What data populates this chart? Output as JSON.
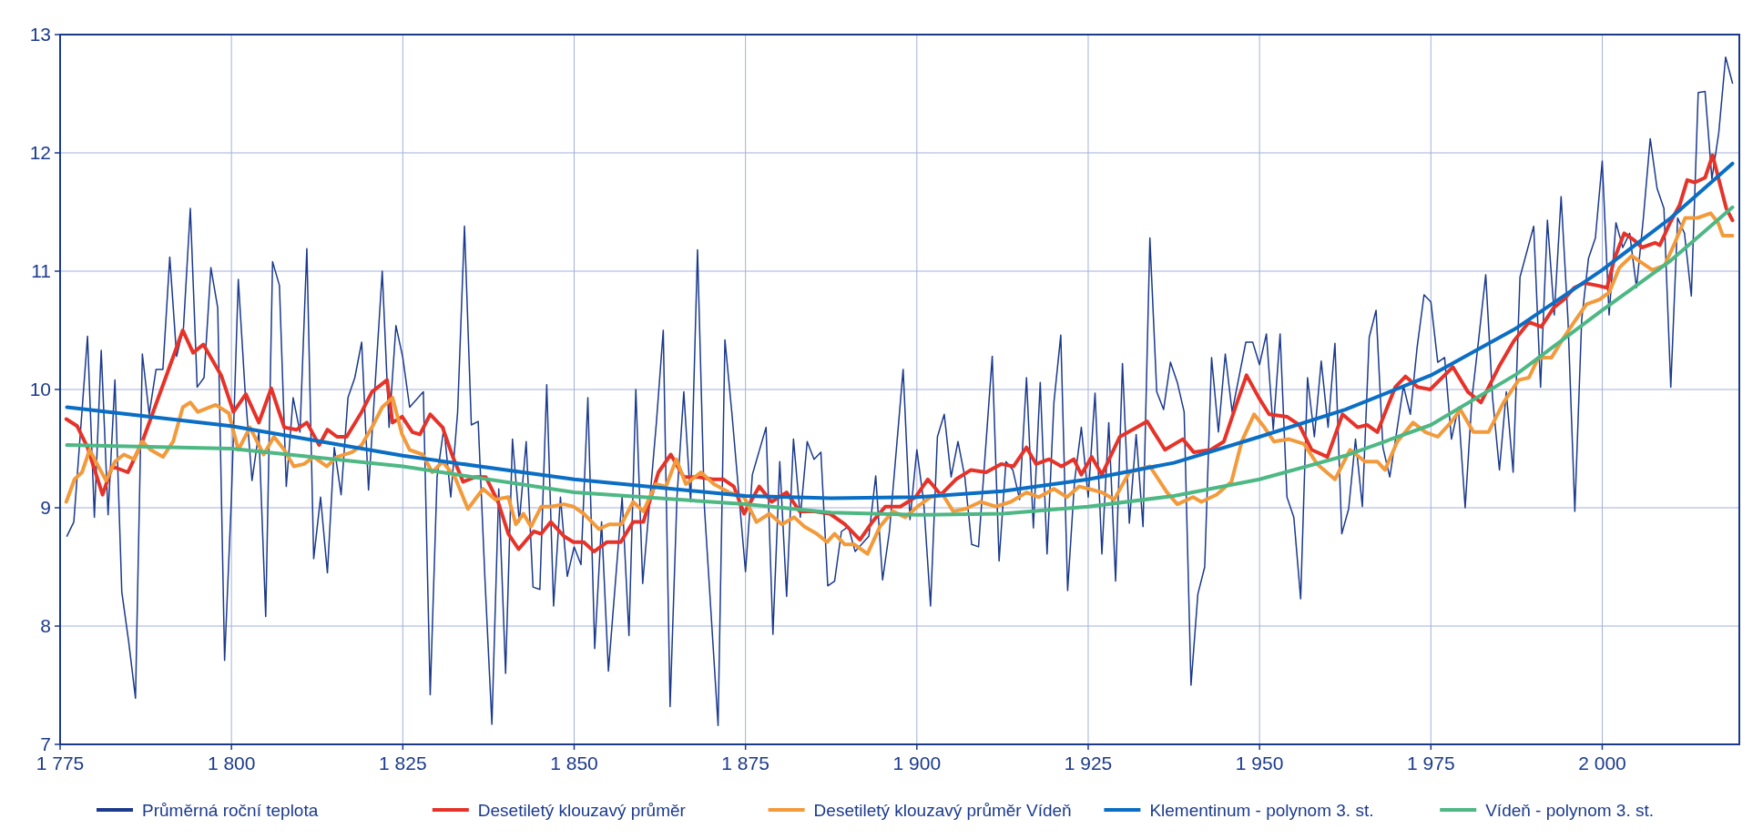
{
  "chart_data": {
    "type": "line",
    "xlim": [
      1775,
      2020
    ],
    "xticks": [
      {
        "value": 1775,
        "label": "1 775"
      },
      {
        "value": 1800,
        "label": "1 800"
      },
      {
        "value": 1825,
        "label": "1 825"
      },
      {
        "value": 1850,
        "label": "1 850"
      },
      {
        "value": 1875,
        "label": "1 875"
      },
      {
        "value": 1900,
        "label": "1 900"
      },
      {
        "value": 1925,
        "label": "1 925"
      },
      {
        "value": 1950,
        "label": "1 950"
      },
      {
        "value": 1975,
        "label": "1 975"
      },
      {
        "value": 2000,
        "label": "2 000"
      }
    ],
    "ylim": [
      7,
      13
    ],
    "yticks": [
      7,
      8,
      9,
      10,
      11,
      12,
      13
    ],
    "grid": true,
    "legend": "bottom",
    "line_style": "solid",
    "marker": "none",
    "series": [
      {
        "name": "Průměrná roční teplota",
        "color": "#1b3a8c",
        "x": [
          1776,
          1777,
          1779,
          1780,
          1781,
          1782,
          1783,
          1784,
          1785,
          1786,
          1787,
          1788,
          1789,
          1790,
          1791,
          1792,
          1793,
          1794,
          1795,
          1796,
          1797,
          1798,
          1799,
          1800,
          1801,
          1802,
          1803,
          1804,
          1805,
          1806,
          1807,
          1808,
          1809,
          1810,
          1811,
          1812,
          1813,
          1814,
          1815,
          1816,
          1817,
          1818,
          1819,
          1820,
          1822,
          1823,
          1824,
          1825,
          1826,
          1828,
          1829,
          1830,
          1831,
          1832,
          1833,
          1834,
          1835,
          1836,
          1837,
          1838,
          1839,
          1840,
          1841,
          1842,
          1843,
          1844,
          1845,
          1846,
          1847,
          1848,
          1849,
          1850,
          1851,
          1852,
          1853,
          1854,
          1855,
          1857,
          1858,
          1859,
          1860,
          1862,
          1863,
          1864,
          1865,
          1866,
          1867,
          1868,
          1869,
          1871,
          1872,
          1873,
          1875,
          1876,
          1878,
          1879,
          1880,
          1881,
          1882,
          1883,
          1884,
          1885,
          1886,
          1887,
          1888,
          1889,
          1890,
          1891,
          1893,
          1894,
          1895,
          1896,
          1898,
          1899,
          1900,
          1901,
          1902,
          1903,
          1904,
          1905,
          1906,
          1907,
          1908,
          1909,
          1911,
          1912,
          1913,
          1914,
          1915,
          1916,
          1917,
          1918,
          1919,
          1920,
          1921,
          1922,
          1923,
          1924,
          1925,
          1926,
          1927,
          1928,
          1929,
          1930,
          1931,
          1932,
          1933,
          1934,
          1935,
          1936,
          1937,
          1938,
          1939,
          1940,
          1941,
          1942,
          1943,
          1944,
          1945,
          1946,
          1948,
          1949,
          1950,
          1951,
          1952,
          1953,
          1954,
          1955,
          1956,
          1957,
          1958,
          1959,
          1960,
          1961,
          1962,
          1963,
          1964,
          1965,
          1966,
          1967,
          1968,
          1969,
          1970,
          1971,
          1972,
          1973,
          1974,
          1975,
          1976,
          1977,
          1978,
          1979,
          1980,
          1981,
          1982,
          1983,
          1984,
          1985,
          1986,
          1987,
          1988,
          1990,
          1991,
          1992,
          1993,
          1994,
          1995,
          1996,
          1997,
          1998,
          1999,
          2000,
          2001,
          2002,
          2003,
          2004,
          2005,
          2006,
          2007,
          2008,
          2009,
          2010,
          2011,
          2012,
          2013,
          2014,
          2015,
          2016,
          2017,
          2018,
          2019
        ],
        "values": [
          8.76,
          8.88,
          10.45,
          8.92,
          10.33,
          8.94,
          10.08,
          8.29,
          7.87,
          7.39,
          10.3,
          9.79,
          10.17,
          10.17,
          11.12,
          10.28,
          10.52,
          11.53,
          10.02,
          10.1,
          11.03,
          10.69,
          7.71,
          9.09,
          10.93,
          9.98,
          9.23,
          9.64,
          8.08,
          11.08,
          10.88,
          9.18,
          9.93,
          9.64,
          11.19,
          8.57,
          9.09,
          8.45,
          9.51,
          9.11,
          9.93,
          10.1,
          10.4,
          9.15,
          11.0,
          9.68,
          10.54,
          10.27,
          9.85,
          9.98,
          7.42,
          9.26,
          9.68,
          9.09,
          9.81,
          11.38,
          9.7,
          9.73,
          8.38,
          7.17,
          9.16,
          7.6,
          9.58,
          8.88,
          9.56,
          8.33,
          8.31,
          10.04,
          8.17,
          9.09,
          8.42,
          8.67,
          8.52,
          9.93,
          7.81,
          8.88,
          7.62,
          9.09,
          7.92,
          10.0,
          8.36,
          9.72,
          10.5,
          7.32,
          9.09,
          9.98,
          9.05,
          11.18,
          9.01,
          7.16,
          10.42,
          9.81,
          8.46,
          9.28,
          9.68,
          7.93,
          9.39,
          8.25,
          9.58,
          8.92,
          9.56,
          9.41,
          9.47,
          8.34,
          8.38,
          8.8,
          8.84,
          8.63,
          8.76,
          9.27,
          8.39,
          8.8,
          10.17,
          8.9,
          9.49,
          9.05,
          8.17,
          9.6,
          9.79,
          9.26,
          9.56,
          9.26,
          8.69,
          8.67,
          10.28,
          8.55,
          9.39,
          9.32,
          9.07,
          10.1,
          8.83,
          10.06,
          8.61,
          9.89,
          10.46,
          8.3,
          9.22,
          9.68,
          9.09,
          9.97,
          8.61,
          9.72,
          8.38,
          10.22,
          8.87,
          9.62,
          8.84,
          11.28,
          9.98,
          9.83,
          10.23,
          10.06,
          9.81,
          7.5,
          8.27,
          8.5,
          10.27,
          9.64,
          10.3,
          9.81,
          10.4,
          10.4,
          10.21,
          10.47,
          9.66,
          10.47,
          9.09,
          8.92,
          8.23,
          10.1,
          9.6,
          10.24,
          9.68,
          10.39,
          8.78,
          8.99,
          9.58,
          9.01,
          10.44,
          10.67,
          9.51,
          9.26,
          9.64,
          10.03,
          9.79,
          10.36,
          10.8,
          10.74,
          10.23,
          10.27,
          9.58,
          9.85,
          9.0,
          9.93,
          10.44,
          10.97,
          9.93,
          9.32,
          9.98,
          9.3,
          10.95,
          11.38,
          10.02,
          11.43,
          10.63,
          11.63,
          10.59,
          8.97,
          10.59,
          11.11,
          11.28,
          11.93,
          10.63,
          11.41,
          11.2,
          11.32,
          10.86,
          11.45,
          12.12,
          11.7,
          11.53,
          10.02,
          11.45,
          11.32,
          10.79,
          12.51,
          12.52,
          11.78,
          12.17,
          12.81,
          12.59
        ]
      },
      {
        "name": "Desetiletý klouzavý průměr",
        "color": "#e63329",
        "x": [
          1775.9,
          1777.5,
          1779,
          1781.2,
          1782.6,
          1784.9,
          1787,
          1790.4,
          1792.9,
          1794.4,
          1795.9,
          1798.5,
          1800.3,
          1802.1,
          1804,
          1805.8,
          1807.7,
          1809.5,
          1811,
          1812.8,
          1814,
          1815.4,
          1816.8,
          1819,
          1820.5,
          1822.7,
          1823.5,
          1824.9,
          1826.4,
          1827.5,
          1829,
          1830.8,
          1832.3,
          1833.8,
          1835.6,
          1837.1,
          1838.9,
          1840.4,
          1841.9,
          1844.1,
          1845.2,
          1846.6,
          1848.5,
          1849.9,
          1851.4,
          1852.9,
          1854.8,
          1856.8,
          1858.6,
          1860.1,
          1862.3,
          1864.1,
          1866,
          1868.2,
          1870.2,
          1871.8,
          1873.3,
          1874.8,
          1877,
          1878.8,
          1881,
          1882.9,
          1885.1,
          1887.3,
          1889.5,
          1891.7,
          1893.5,
          1895.4,
          1897.6,
          1899.8,
          1901.6,
          1903.5,
          1905.7,
          1907.9,
          1910.1,
          1912.3,
          1914.1,
          1916,
          1917.4,
          1919.3,
          1921.1,
          1922.9,
          1924,
          1925.5,
          1927,
          1929.6,
          1932.1,
          1933.6,
          1936.2,
          1938.8,
          1940.4,
          1942.9,
          1944.8,
          1946.6,
          1948.1,
          1949.9,
          1951.4,
          1954,
          1955.8,
          1957.6,
          1959.9,
          1962.1,
          1964.3,
          1965.7,
          1967.2,
          1969.8,
          1971.3,
          1973.1,
          1974.9,
          1978.2,
          1980.4,
          1982.3,
          1984.9,
          1987.1,
          1989.3,
          1991.1,
          1992.9,
          1994.4,
          1995.9,
          1997.4,
          1999.2,
          2000.7,
          2001.8,
          2003.2,
          2004.7,
          2005.8,
          2007.7,
          2008.4,
          2009.9,
          2011.3,
          2012.4,
          2013.5,
          2015,
          2016.1,
          2017.2,
          2018.1,
          2019
        ],
        "values": [
          9.75,
          9.69,
          9.51,
          9.11,
          9.35,
          9.3,
          9.56,
          10.1,
          10.5,
          10.31,
          10.38,
          10.12,
          9.81,
          9.96,
          9.72,
          10.01,
          9.68,
          9.66,
          9.72,
          9.53,
          9.66,
          9.6,
          9.6,
          9.81,
          9.98,
          10.08,
          9.72,
          9.77,
          9.64,
          9.62,
          9.79,
          9.68,
          9.43,
          9.22,
          9.26,
          9.26,
          9.05,
          8.78,
          8.65,
          8.8,
          8.78,
          8.88,
          8.76,
          8.71,
          8.71,
          8.63,
          8.71,
          8.71,
          8.88,
          8.88,
          9.3,
          9.45,
          9.26,
          9.26,
          9.24,
          9.24,
          9.18,
          8.95,
          9.18,
          9.05,
          9.13,
          8.97,
          8.97,
          8.95,
          8.86,
          8.73,
          8.88,
          9.01,
          9.01,
          9.09,
          9.24,
          9.11,
          9.24,
          9.32,
          9.3,
          9.37,
          9.35,
          9.51,
          9.37,
          9.41,
          9.35,
          9.41,
          9.28,
          9.43,
          9.28,
          9.6,
          9.68,
          9.73,
          9.49,
          9.58,
          9.47,
          9.49,
          9.56,
          9.87,
          10.12,
          9.93,
          9.79,
          9.77,
          9.7,
          9.49,
          9.43,
          9.79,
          9.68,
          9.7,
          9.64,
          10.02,
          10.11,
          10.02,
          10.0,
          10.19,
          9.98,
          9.89,
          10.19,
          10.41,
          10.57,
          10.53,
          10.69,
          10.76,
          10.86,
          10.9,
          10.88,
          10.86,
          11.11,
          11.32,
          11.26,
          11.2,
          11.24,
          11.22,
          11.41,
          11.56,
          11.77,
          11.75,
          11.79,
          11.98,
          11.73,
          11.53,
          11.43
        ]
      },
      {
        "name": "Desetiletý klouzavý průměr Vídeň",
        "color": "#f39a3b",
        "x": [
          1775.9,
          1777.1,
          1778.2,
          1779.3,
          1780.4,
          1781.7,
          1783,
          1784.3,
          1785.8,
          1787,
          1788.2,
          1790,
          1791.5,
          1792.9,
          1794,
          1795.1,
          1797.7,
          1799.6,
          1801,
          1802.7,
          1804.7,
          1806.2,
          1807.7,
          1809.1,
          1810.6,
          1812,
          1813.9,
          1815.4,
          1817.6,
          1819,
          1820.5,
          1822,
          1823.5,
          1824.9,
          1826,
          1827.9,
          1829.3,
          1830.8,
          1832.6,
          1834.5,
          1836.7,
          1838.5,
          1840.4,
          1841.5,
          1842.6,
          1843.7,
          1845.2,
          1846.6,
          1848.5,
          1849.9,
          1851.4,
          1853.6,
          1855.1,
          1856.9,
          1858.6,
          1860.1,
          1861.9,
          1863.4,
          1864.9,
          1866.3,
          1868.5,
          1870.4,
          1872.6,
          1874.8,
          1876.6,
          1878.5,
          1880.3,
          1882.1,
          1883.6,
          1885.4,
          1886.9,
          1888,
          1889.5,
          1890.9,
          1892.8,
          1894.6,
          1896.5,
          1898.3,
          1900.1,
          1902,
          1903.8,
          1905.3,
          1907.1,
          1909.3,
          1911.5,
          1913.7,
          1916,
          1917.8,
          1920,
          1921.9,
          1923.7,
          1925.1,
          1927,
          1928.8,
          1931,
          1934,
          1936.5,
          1938,
          1940.3,
          1941.5,
          1943.7,
          1945.9,
          1947.4,
          1949.2,
          1950.7,
          1952.1,
          1954.3,
          1956.5,
          1958.4,
          1961,
          1963.2,
          1965.4,
          1967.2,
          1968.3,
          1970.1,
          1972.4,
          1974.2,
          1976,
          1977.9,
          1979.3,
          1981.2,
          1983.4,
          1985.6,
          1987.8,
          1989.3,
          1990.7,
          1992.6,
          1994.4,
          1995.9,
          1997.7,
          1999.6,
          2001,
          2002.5,
          2004.3,
          2005.8,
          2007.3,
          2009.1,
          2010.6,
          2012.1,
          2013.9,
          2015.8,
          2016.9,
          2017.6,
          2019
        ],
        "values": [
          9.05,
          9.24,
          9.3,
          9.49,
          9.37,
          9.23,
          9.39,
          9.45,
          9.41,
          9.56,
          9.49,
          9.43,
          9.56,
          9.85,
          9.89,
          9.81,
          9.87,
          9.8,
          9.49,
          9.68,
          9.45,
          9.6,
          9.49,
          9.35,
          9.37,
          9.43,
          9.35,
          9.43,
          9.47,
          9.53,
          9.68,
          9.85,
          9.93,
          9.62,
          9.49,
          9.45,
          9.3,
          9.39,
          9.26,
          8.99,
          9.16,
          9.07,
          9.09,
          8.86,
          8.95,
          8.84,
          9.01,
          9.01,
          9.03,
          9.01,
          8.95,
          8.82,
          8.86,
          8.86,
          9.05,
          8.97,
          9.2,
          9.18,
          9.41,
          9.2,
          9.3,
          9.2,
          9.13,
          9.09,
          8.88,
          8.95,
          8.86,
          8.92,
          8.84,
          8.78,
          8.71,
          8.78,
          8.69,
          8.69,
          8.61,
          8.84,
          8.97,
          8.92,
          9.01,
          9.09,
          9.11,
          8.97,
          8.99,
          9.05,
          9.01,
          9.05,
          9.13,
          9.09,
          9.16,
          9.09,
          9.18,
          9.16,
          9.13,
          9.07,
          9.3,
          9.35,
          9.13,
          9.03,
          9.09,
          9.05,
          9.11,
          9.22,
          9.56,
          9.79,
          9.68,
          9.56,
          9.58,
          9.54,
          9.37,
          9.24,
          9.49,
          9.39,
          9.39,
          9.32,
          9.56,
          9.72,
          9.64,
          9.6,
          9.72,
          9.83,
          9.64,
          9.64,
          9.89,
          10.08,
          10.1,
          10.27,
          10.27,
          10.44,
          10.57,
          10.72,
          10.76,
          10.82,
          11.03,
          11.13,
          11.07,
          11.01,
          11.05,
          11.24,
          11.45,
          11.45,
          11.49,
          11.41,
          11.3,
          11.3
        ]
      },
      {
        "name": "Klementinum - polynom 3. st.",
        "color": "#0a6ec4",
        "x": [
          1776,
          1800,
          1825,
          1850,
          1875,
          1887.5,
          1900,
          1912.5,
          1925,
          1937.5,
          1950,
          1962.5,
          1975,
          1987.5,
          2000,
          2010,
          2019
        ],
        "values": [
          9.85,
          9.69,
          9.44,
          9.24,
          9.1,
          9.08,
          9.09,
          9.14,
          9.24,
          9.38,
          9.6,
          9.83,
          10.12,
          10.52,
          11.01,
          11.45,
          11.91
        ]
      },
      {
        "name": "Vídeň - polynom 3. st.",
        "color": "#4db884",
        "x": [
          1776,
          1800,
          1825,
          1850,
          1875,
          1887.5,
          1900,
          1912.5,
          1925,
          1937.5,
          1950,
          1962.5,
          1975,
          1987.5,
          2000,
          2010,
          2019
        ],
        "values": [
          9.53,
          9.5,
          9.35,
          9.13,
          9.03,
          8.96,
          8.94,
          8.95,
          9.01,
          9.1,
          9.24,
          9.44,
          9.7,
          10.13,
          10.67,
          11.09,
          11.54
        ]
      }
    ]
  }
}
